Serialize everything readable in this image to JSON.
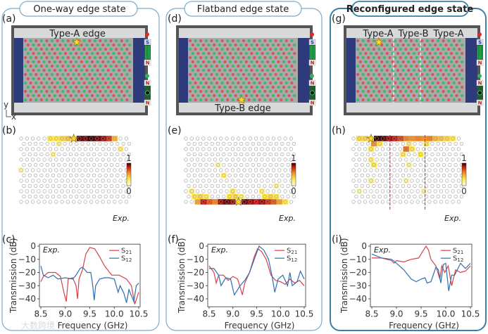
{
  "panels": [
    {
      "title": "One-way edge state",
      "label_top": "(a)",
      "label_mid": "(b)",
      "label_bot": "(c)",
      "edge_labels": [
        "Type-A edge"
      ],
      "exp": "Exp."
    },
    {
      "title": "Flatband edge state",
      "label_top": "(d)",
      "label_mid": "(e)",
      "label_bot": "(f)",
      "edge_labels": [
        "Type-B edge"
      ],
      "exp": "Exp."
    },
    {
      "title": "Reconfigured edge state",
      "label_top": "(g)",
      "label_mid": "(h)",
      "label_bot": "(i)",
      "edge_labels": [
        "Type-A",
        "Type-B",
        "Type-A"
      ],
      "exp": "Exp."
    }
  ],
  "axes_indicator": {
    "y": "y",
    "x": "x"
  },
  "magnets": {
    "s": "S",
    "n": "N"
  },
  "colorbar": {
    "max": "1",
    "min": "0"
  },
  "colors": {
    "red_site": "#d9535a",
    "green_site": "#3cb96a",
    "s21": "#d9414a",
    "s12": "#2f6fb0",
    "frame": "#7aaacb"
  },
  "heatmaps": [
    {
      "star": [
        9,
        0
      ],
      "cells": [
        [
          5,
          0,
          0.3
        ],
        [
          6,
          0,
          0.3
        ],
        [
          7,
          0,
          0.35
        ],
        [
          8,
          0,
          0.4
        ],
        [
          10,
          0,
          0.95
        ],
        [
          11,
          0,
          0.95
        ],
        [
          12,
          0,
          1
        ],
        [
          13,
          0,
          0.95
        ],
        [
          14,
          0,
          0.9
        ],
        [
          15,
          0,
          0.8
        ],
        [
          16,
          0,
          0.45
        ],
        [
          6,
          1,
          0.15
        ],
        [
          17,
          2,
          0.2
        ],
        [
          5,
          3,
          0.12
        ],
        [
          0,
          6,
          0.1
        ]
      ]
    },
    {
      "star": [
        9,
        12
      ],
      "cells": [
        [
          2,
          12,
          0.5
        ],
        [
          3,
          12,
          0.85
        ],
        [
          4,
          12,
          0.7
        ],
        [
          5,
          12,
          0.6
        ],
        [
          6,
          12,
          0.9
        ],
        [
          7,
          12,
          0.95
        ],
        [
          8,
          12,
          0.9
        ],
        [
          10,
          12,
          0.95
        ],
        [
          11,
          12,
          0.9
        ],
        [
          12,
          12,
          0.85
        ],
        [
          13,
          12,
          0.9
        ],
        [
          14,
          12,
          0.8
        ],
        [
          15,
          12,
          0.7
        ],
        [
          16,
          12,
          0.5
        ],
        [
          17,
          12,
          0.3
        ],
        [
          1,
          11,
          0.3
        ],
        [
          2,
          11,
          0.35
        ],
        [
          3,
          11,
          0.25
        ],
        [
          7,
          11,
          0.3
        ],
        [
          8,
          11,
          0.35
        ],
        [
          9,
          11,
          0.2
        ],
        [
          13,
          11,
          0.3
        ],
        [
          14,
          11,
          0.35
        ],
        [
          15,
          11,
          0.3
        ],
        [
          1,
          10,
          0.2
        ],
        [
          8,
          10,
          0.25
        ],
        [
          13,
          10,
          0.2
        ],
        [
          15,
          9,
          0.15
        ],
        [
          6,
          7,
          0.2
        ],
        [
          5,
          5,
          0.12
        ]
      ]
    },
    {
      "star": [
        3,
        0
      ],
      "dividers": [
        6,
        12
      ],
      "cells": [
        [
          1,
          0,
          0.35
        ],
        [
          2,
          0,
          0.35
        ],
        [
          4,
          0,
          1
        ],
        [
          5,
          0,
          0.98
        ],
        [
          6,
          0,
          0.9
        ],
        [
          7,
          0,
          0.85
        ],
        [
          8,
          0,
          0.75
        ],
        [
          9,
          0,
          0.6
        ],
        [
          10,
          0,
          0.55
        ],
        [
          11,
          0,
          0.6
        ],
        [
          12,
          0,
          0.55
        ],
        [
          13,
          0,
          0.6
        ],
        [
          14,
          0,
          0.45
        ],
        [
          15,
          0,
          0.4
        ],
        [
          16,
          0,
          0.35
        ],
        [
          17,
          0,
          0.3
        ],
        [
          3,
          1,
          0.55
        ],
        [
          4,
          1,
          0.3
        ],
        [
          9,
          1,
          0.2
        ],
        [
          12,
          1,
          0.3
        ],
        [
          3,
          2,
          0.3
        ],
        [
          9,
          2,
          0.65
        ],
        [
          10,
          2,
          0.3
        ],
        [
          8,
          3,
          0.25
        ],
        [
          11,
          3,
          0.3
        ],
        [
          3,
          4,
          0.2
        ],
        [
          3,
          5,
          0.3
        ],
        [
          9,
          5,
          0.15
        ],
        [
          3,
          8,
          0.15
        ],
        [
          9,
          8,
          0.12
        ],
        [
          1,
          10,
          0.1
        ],
        [
          12,
          10,
          0.1
        ]
      ]
    }
  ],
  "chart_data": [
    {
      "type": "line",
      "title": "",
      "xlabel": "Frequency (GHz)",
      "ylabel": "Transmission (dB)",
      "xlim": [
        8.5,
        10.5
      ],
      "ylim": [
        -46,
        1.5
      ],
      "xticks": [
        "8.5",
        "9.0",
        "9.5",
        "10.0",
        "10.5"
      ],
      "yticks": [
        "0",
        "−10",
        "−20",
        "−30",
        "−40"
      ],
      "annotation": "Exp.",
      "legend": "top-right",
      "series": [
        {
          "name": "S21",
          "sub": "21",
          "color": "#d9414a",
          "x": [
            8.5,
            8.55,
            8.65,
            8.8,
            8.9,
            8.97,
            9.02,
            9.06,
            9.15,
            9.22,
            9.25,
            9.28,
            9.35,
            9.42,
            9.5,
            9.6,
            9.7,
            9.8,
            9.95,
            10.1,
            10.25,
            10.35,
            10.42,
            10.5
          ],
          "y": [
            -27,
            -23,
            -20,
            -20,
            -23,
            -35,
            -42,
            -25,
            -24,
            -30,
            -40,
            -25,
            -18,
            -6,
            -1,
            -2,
            -8,
            -15,
            -22,
            -22,
            -25,
            -30,
            -44,
            -35
          ]
        },
        {
          "name": "S12",
          "sub": "12",
          "color": "#2f6fb0",
          "x": [
            8.5,
            8.55,
            8.65,
            8.75,
            8.85,
            9.0,
            9.15,
            9.22,
            9.3,
            9.35,
            9.45,
            9.52,
            9.55,
            9.59,
            9.62,
            9.7,
            9.8,
            9.9,
            10.0,
            10.08,
            10.12,
            10.2,
            10.25,
            10.3,
            10.4,
            10.45,
            10.5
          ],
          "y": [
            -15,
            -22,
            -24,
            -22,
            -25,
            -24,
            -25,
            -22,
            -17,
            -16,
            -20,
            -20,
            -27,
            -41,
            -30,
            -25,
            -24,
            -24,
            -25,
            -35,
            -30,
            -36,
            -43,
            -33,
            -42,
            -30,
            -28
          ]
        }
      ]
    },
    {
      "type": "line",
      "title": "",
      "xlabel": "Frequency (GHz)",
      "ylabel": "Transmission (dB)",
      "xlim": [
        8.5,
        10.5
      ],
      "ylim": [
        -46,
        1.5
      ],
      "xticks": [
        "8.5",
        "9.0",
        "9.5",
        "10.0",
        "10.5"
      ],
      "yticks": [
        "0",
        "−10",
        "−20",
        "−30",
        "−40"
      ],
      "annotation": "Exp.",
      "legend": "top-right",
      "series": [
        {
          "name": "S21",
          "sub": "21",
          "color": "#d9414a",
          "x": [
            8.5,
            8.6,
            8.65,
            8.7,
            8.8,
            8.9,
            9.0,
            9.1,
            9.2,
            9.25,
            9.35,
            9.45,
            9.52,
            9.6,
            9.7,
            9.8,
            9.9,
            10.0,
            10.1,
            10.2,
            10.3,
            10.4,
            10.5
          ],
          "y": [
            -15,
            -20,
            -28,
            -22,
            -22,
            -26,
            -23,
            -25,
            -37,
            -28,
            -20,
            -8,
            -2,
            -4,
            -10,
            -22,
            -26,
            -27,
            -29,
            -25,
            -28,
            -26,
            -30
          ]
        },
        {
          "name": "S12",
          "sub": "12",
          "color": "#2f6fb0",
          "x": [
            8.5,
            8.6,
            8.7,
            8.75,
            8.85,
            8.95,
            9.03,
            9.15,
            9.25,
            9.35,
            9.45,
            9.55,
            9.65,
            9.75,
            9.82,
            9.88,
            9.95,
            10.05,
            10.15,
            10.2,
            10.25,
            10.35,
            10.42,
            10.5
          ],
          "y": [
            -17,
            -17,
            -22,
            -30,
            -24,
            -25,
            -37,
            -30,
            -26,
            -20,
            -10,
            0,
            -3,
            -10,
            -22,
            -35,
            -25,
            -22,
            -30,
            -20,
            -30,
            -27,
            -19,
            -25
          ]
        }
      ]
    },
    {
      "type": "line",
      "title": "",
      "xlabel": "Frequency (GHz)",
      "ylabel": "Transmission (dB)",
      "xlim": [
        8.5,
        10.5
      ],
      "ylim": [
        -46,
        1.5
      ],
      "xticks": [
        "8.5",
        "9.0",
        "9.5",
        "10.0",
        "10.5"
      ],
      "yticks": [
        "0",
        "−10",
        "−20",
        "−30",
        "−40"
      ],
      "annotation": "Exp.",
      "legend": "top-right",
      "series": [
        {
          "name": "S21",
          "sub": "21",
          "color": "#d9414a",
          "x": [
            8.5,
            8.7,
            8.9,
            8.95,
            9.0,
            9.15,
            9.3,
            9.45,
            9.55,
            9.6,
            9.65,
            9.7,
            9.8,
            9.88,
            9.92,
            9.98,
            10.05,
            10.12,
            10.2,
            10.3,
            10.4,
            10.5
          ],
          "y": [
            -9,
            -9,
            -11,
            -13,
            -11,
            -12,
            -10,
            -9,
            -3,
            0,
            -3,
            -10,
            -15,
            -25,
            -15,
            -20,
            -15,
            -30,
            -18,
            -20,
            -19,
            -15
          ]
        },
        {
          "name": "S12",
          "sub": "12",
          "color": "#2f6fb0",
          "x": [
            8.5,
            8.7,
            8.9,
            9.0,
            9.15,
            9.3,
            9.4,
            9.5,
            9.58,
            9.62,
            9.7,
            9.8,
            9.85,
            9.9,
            9.95,
            10.0,
            10.06,
            10.12,
            10.18,
            10.3,
            10.4,
            10.5
          ],
          "y": [
            -6,
            -9,
            -10,
            -13,
            -18,
            -25,
            -27,
            -25,
            -24,
            -28,
            -27,
            -16,
            -18,
            -28,
            -14,
            -13,
            -34,
            -22,
            -22,
            -13,
            -17,
            -13
          ]
        }
      ]
    }
  ],
  "watermark": "大数跨境"
}
